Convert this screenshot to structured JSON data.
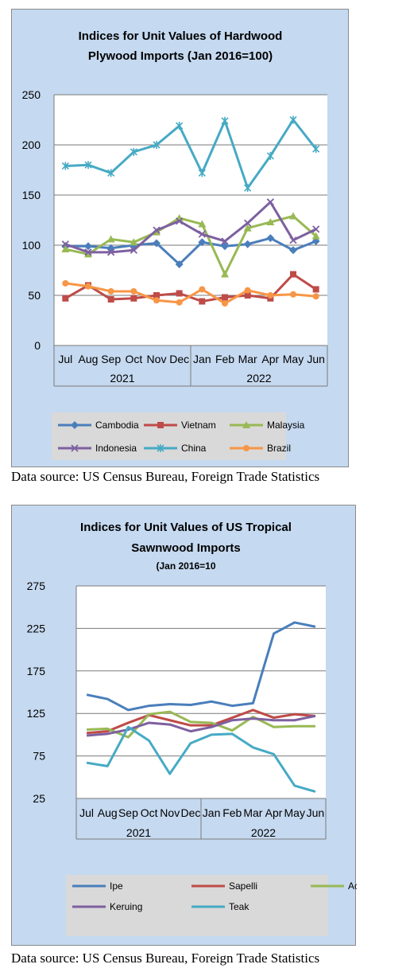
{
  "colors": {
    "panel_bg": "#c5d9f0",
    "plot_bg": "#ffffff",
    "grid": "#7a7a7a"
  },
  "source_text": "Data source: US Census Bureau, Foreign Trade Statistics",
  "chart_data": [
    {
      "type": "line",
      "title_lines": [
        "Indices for Unit Values of Hardwood",
        "Plywood Imports (Jan 2016=100)"
      ],
      "categories": [
        "Jul",
        "Aug",
        "Sep",
        "Oct",
        "Nov",
        "Dec",
        "Jan",
        "Feb",
        "Mar",
        "Apr",
        "May",
        "Jun"
      ],
      "year_groups": [
        {
          "label": "2021",
          "count": 6
        },
        {
          "label": "2022",
          "count": 6
        }
      ],
      "ylim": [
        0,
        250
      ],
      "yticks": [
        0,
        50,
        100,
        150,
        200,
        250
      ],
      "grid": true,
      "markers": true,
      "legend_position": "bottom",
      "series": [
        {
          "name": "Cambodia",
          "color": "#4a7ebb",
          "marker": "diamond",
          "values": [
            99,
            99,
            97,
            100,
            102,
            81,
            103,
            99,
            101,
            107,
            95,
            104
          ]
        },
        {
          "name": "Vietnam",
          "color": "#be4b48",
          "marker": "square",
          "values": [
            47,
            60,
            46,
            47,
            50,
            52,
            44,
            48,
            50,
            47,
            71,
            56
          ]
        },
        {
          "name": "Malaysia",
          "color": "#98b954",
          "marker": "triangle",
          "values": [
            96,
            91,
            106,
            103,
            113,
            127,
            121,
            71,
            117,
            123,
            129,
            109
          ]
        },
        {
          "name": "Indonesia",
          "color": "#7d60a0",
          "marker": "x",
          "values": [
            101,
            93,
            93,
            95,
            115,
            124,
            111,
            104,
            122,
            143,
            105,
            116
          ]
        },
        {
          "name": "China",
          "color": "#46aac4",
          "marker": "star",
          "values": [
            179,
            180,
            172,
            193,
            200,
            219,
            172,
            224,
            157,
            189,
            225,
            196
          ]
        },
        {
          "name": "Brazil",
          "color": "#f79646",
          "marker": "circle",
          "values": [
            62,
            59,
            54,
            54,
            45,
            43,
            56,
            42,
            55,
            50,
            51,
            49
          ]
        }
      ]
    },
    {
      "type": "line",
      "title_lines": [
        "Indices for Unit Values of US Tropical",
        "Sawnwood Imports"
      ],
      "subtitle": "(Jan 2016=10",
      "categories": [
        "Jul",
        "Aug",
        "Sep",
        "Oct",
        "Nov",
        "Dec",
        "Jan",
        "Feb",
        "Mar",
        "Apr",
        "May",
        "Jun"
      ],
      "year_groups": [
        {
          "label": "2021",
          "count": 6
        },
        {
          "label": "2022",
          "count": 6
        }
      ],
      "ylim": [
        25,
        275
      ],
      "yticks": [
        25,
        75,
        125,
        175,
        225,
        275
      ],
      "grid": true,
      "markers": false,
      "legend_position": "bottom",
      "series": [
        {
          "name": "Ipe",
          "color": "#4a7ebb",
          "values": [
            147,
            142,
            129,
            134,
            136,
            135,
            139,
            134,
            137,
            219,
            232,
            227
          ]
        },
        {
          "name": "Sapelli",
          "color": "#be4b48",
          "values": [
            102,
            104,
            114,
            123,
            117,
            111,
            111,
            120,
            129,
            120,
            124,
            122
          ]
        },
        {
          "name": "Acajou d'Afrique",
          "color": "#98b954",
          "values": [
            106,
            107,
            97,
            124,
            127,
            115,
            114,
            105,
            121,
            109,
            110,
            110
          ]
        },
        {
          "name": "Keruing",
          "color": "#7d60a0",
          "values": [
            99,
            101,
            106,
            114,
            112,
            104,
            109,
            117,
            119,
            117,
            117,
            122
          ]
        },
        {
          "name": "Teak",
          "color": "#46aac4",
          "values": [
            67,
            63,
            109,
            93,
            54,
            90,
            100,
            101,
            85,
            77,
            40,
            33
          ]
        }
      ]
    }
  ]
}
